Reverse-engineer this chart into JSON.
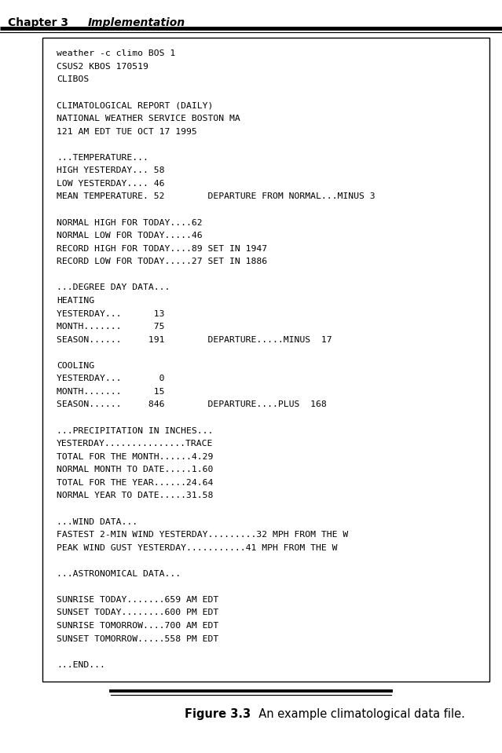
{
  "title_left": "Chapter 3",
  "title_right": "Implementation",
  "figure_label_bold": "Figure 3.3",
  "figure_label_rest": "  An example climatological data file.",
  "content": [
    "weather -c climo BOS 1",
    "CSUS2 KBOS 170519",
    "CLIBOS",
    "",
    "CLIMATOLOGICAL REPORT (DAILY)",
    "NATIONAL WEATHER SERVICE BOSTON MA",
    "121 AM EDT TUE OCT 17 1995",
    "",
    "...TEMPERATURE...",
    "HIGH YESTERDAY... 58",
    "LOW YESTERDAY.... 46",
    "MEAN TEMPERATURE. 52        DEPARTURE FROM NORMAL...MINUS 3",
    "",
    "NORMAL HIGH FOR TODAY....62",
    "NORMAL LOW FOR TODAY.....46",
    "RECORD HIGH FOR TODAY....89 SET IN 1947",
    "RECORD LOW FOR TODAY.....27 SET IN 1886",
    "",
    "...DEGREE DAY DATA...",
    "HEATING",
    "YESTERDAY...      13",
    "MONTH.......      75",
    "SEASON......     191        DEPARTURE.....MINUS  17",
    "",
    "COOLING",
    "YESTERDAY...       0",
    "MONTH.......      15",
    "SEASON......     846        DEPARTURE....PLUS  168",
    "",
    "...PRECIPITATION IN INCHES...",
    "YESTERDAY...............TRACE",
    "TOTAL FOR THE MONTH......4.29",
    "NORMAL MONTH TO DATE.....1.60",
    "TOTAL FOR THE YEAR......24.64",
    "NORMAL YEAR TO DATE.....31.58",
    "",
    "...WIND DATA...",
    "FASTEST 2-MIN WIND YESTERDAY.........32 MPH FROM THE W",
    "PEAK WIND GUST YESTERDAY...........41 MPH FROM THE W",
    "",
    "...ASTRONOMICAL DATA...",
    "",
    "SUNRISE TODAY.......659 AM EDT",
    "SUNSET TODAY........600 PM EDT",
    "SUNRISE TOMORROW....700 AM EDT",
    "SUNSET TOMORROW.....558 PM EDT",
    "",
    "...END..."
  ],
  "bg_color": "#ffffff",
  "box_bg": "#ffffff",
  "box_border": "#000000",
  "text_color": "#000000",
  "font_size": 8.2,
  "header_fontsize": 10,
  "caption_fontsize": 10.5
}
